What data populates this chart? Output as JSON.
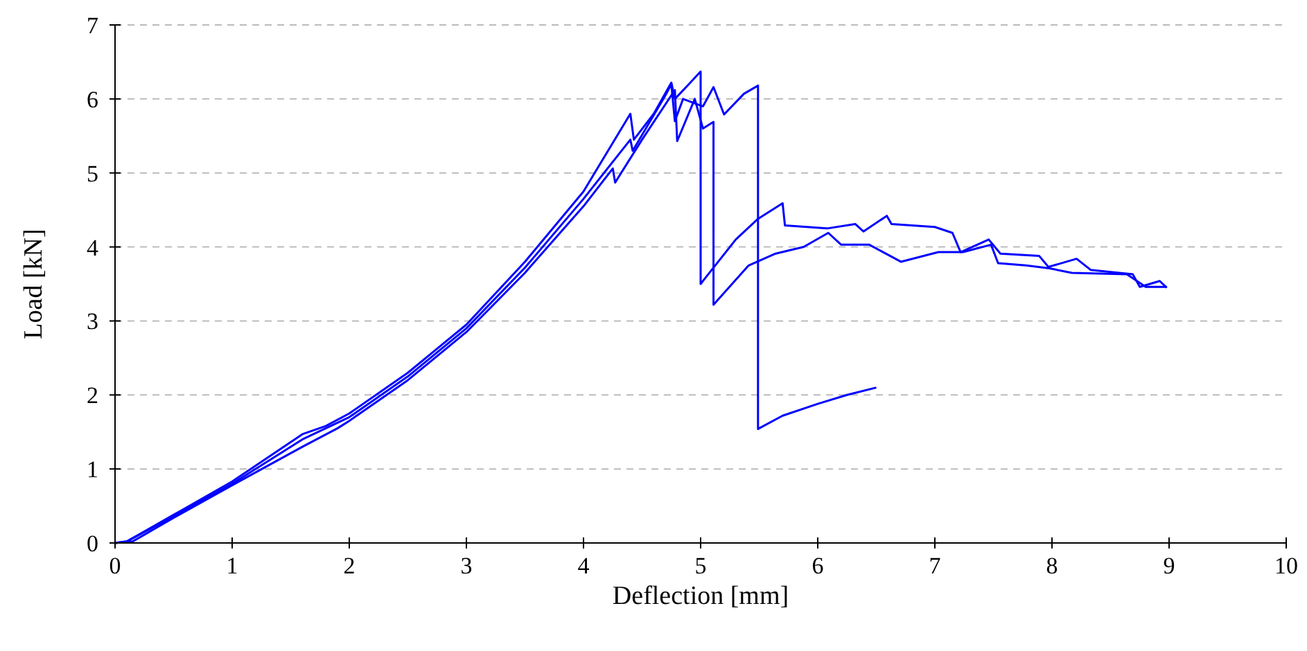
{
  "chart_data": {
    "type": "line",
    "xlabel": "Deflection [mm]",
    "ylabel": "Load [kN]",
    "xlim": [
      0,
      10
    ],
    "xticks": [
      0,
      1,
      2,
      3,
      4,
      5,
      6,
      7,
      8,
      9,
      10
    ],
    "ylim": [
      0,
      7
    ],
    "yticks": [
      0,
      1,
      2,
      3,
      4,
      5,
      6,
      7
    ],
    "grid": "y",
    "marker": "none",
    "line_style": "solid",
    "series": [
      {
        "color": "#0000ff",
        "x": [
          0,
          0.1,
          0.5,
          1,
          1.6,
          1.8,
          2,
          2.5,
          3,
          3.5,
          4,
          4.4,
          4.43,
          4.6,
          4.75,
          4.78,
          4.9,
          5.0,
          5.0,
          5.3,
          5.49,
          5.7,
          5.72,
          6.08,
          6.32,
          6.39,
          6.59,
          6.63,
          7.0,
          7.15,
          7.22,
          7.46,
          7.56,
          7.89,
          7.97,
          8.21,
          8.33,
          8.69,
          8.75,
          8.92,
          8.98
        ],
        "values": [
          0,
          0.02,
          0.38,
          0.83,
          1.47,
          1.58,
          1.75,
          2.3,
          2.95,
          3.8,
          4.75,
          5.8,
          5.45,
          5.8,
          6.22,
          6.0,
          6.2,
          6.37,
          3.5,
          4.1,
          4.38,
          4.59,
          4.29,
          4.25,
          4.31,
          4.21,
          4.42,
          4.31,
          4.27,
          4.19,
          3.93,
          4.1,
          3.91,
          3.88,
          3.73,
          3.84,
          3.69,
          3.63,
          3.46,
          3.54,
          3.45
        ]
      },
      {
        "color": "#0000ff",
        "x": [
          0,
          0.15,
          0.5,
          1,
          1.6,
          1.9,
          2,
          2.5,
          3,
          3.5,
          4,
          4.25,
          4.27,
          4.5,
          4.78,
          4.8,
          4.95,
          5.02,
          5.11,
          5.11,
          5.41,
          5.64,
          5.88,
          6.09,
          6.2,
          6.44,
          6.71,
          7.03,
          7.24,
          7.48,
          7.54,
          7.78,
          7.98,
          8.17,
          8.64,
          8.8,
          8.98
        ],
        "values": [
          0,
          0.02,
          0.34,
          0.78,
          1.3,
          1.55,
          1.65,
          2.2,
          2.85,
          3.65,
          4.55,
          5.06,
          4.87,
          5.45,
          6.12,
          5.43,
          6.0,
          5.6,
          5.69,
          3.22,
          3.75,
          3.91,
          4.0,
          4.19,
          4.03,
          4.03,
          3.8,
          3.93,
          3.93,
          4.03,
          3.78,
          3.75,
          3.71,
          3.65,
          3.63,
          3.46,
          3.46
        ]
      },
      {
        "color": "#0000ff",
        "x": [
          0,
          0.1,
          0.5,
          1,
          1.6,
          2,
          2.5,
          3,
          3.5,
          4,
          4.4,
          4.42,
          4.7,
          4.75,
          4.78,
          4.85,
          5.02,
          5.11,
          5.2,
          5.37,
          5.49,
          5.49,
          5.7,
          6,
          6.25,
          6.5
        ],
        "values": [
          0,
          0.02,
          0.36,
          0.8,
          1.4,
          1.7,
          2.25,
          2.9,
          3.72,
          4.65,
          5.45,
          5.3,
          6.05,
          6.2,
          5.7,
          6.0,
          5.9,
          6.16,
          5.79,
          6.07,
          6.18,
          1.54,
          1.72,
          1.88,
          2.0,
          2.1
        ]
      }
    ]
  }
}
